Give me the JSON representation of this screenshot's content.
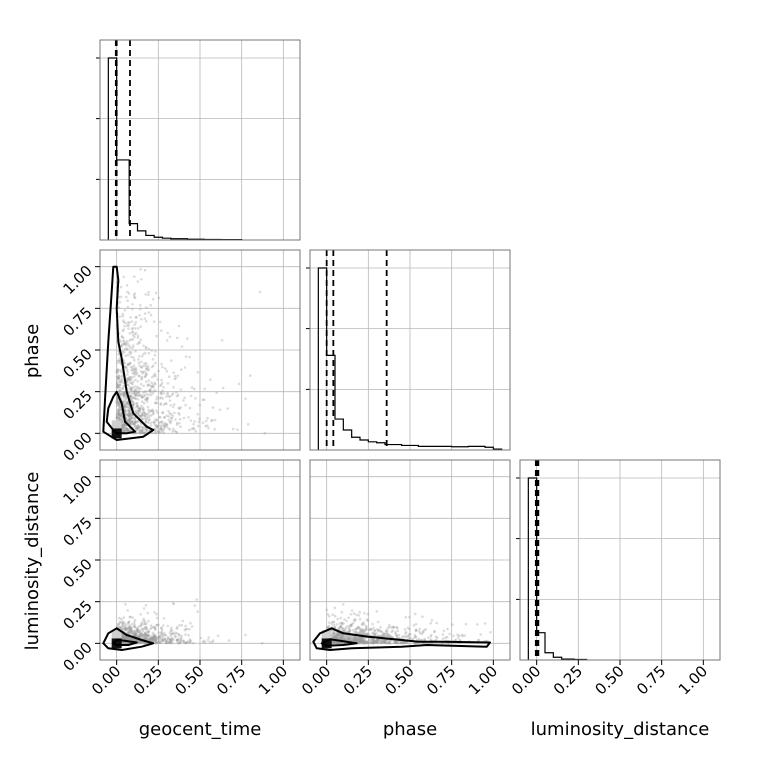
{
  "chart_data": {
    "type": "corner",
    "parameters": [
      "geocent_time",
      "phase",
      "luminosity_distance"
    ],
    "axis_range": [
      -0.1,
      1.1
    ],
    "ticks": [
      0.0,
      0.25,
      0.5,
      0.75,
      1.0
    ],
    "tick_labels": [
      "0.00",
      "0.25",
      "0.50",
      "0.75",
      "1.00"
    ],
    "grid": true,
    "histograms": [
      {
        "parameter": "geocent_time",
        "bin_edges": [
          -0.05,
          0.0,
          0.075,
          0.125,
          0.175,
          0.225,
          0.275,
          0.325,
          0.425,
          0.525,
          0.625,
          0.75
        ],
        "counts": [
          1.0,
          0.44,
          0.09,
          0.05,
          0.025,
          0.015,
          0.01,
          0.007,
          0.004,
          0.003,
          0.002
        ],
        "quantiles": [
          -0.005,
          0.0,
          0.08
        ]
      },
      {
        "parameter": "phase",
        "bin_edges": [
          -0.05,
          0.0,
          0.05,
          0.1,
          0.15,
          0.2,
          0.25,
          0.3,
          0.35,
          0.45,
          0.55,
          0.65,
          0.75,
          0.85,
          0.95,
          1.0,
          1.05
        ],
        "counts": [
          1.0,
          0.52,
          0.17,
          0.11,
          0.07,
          0.055,
          0.045,
          0.04,
          0.03,
          0.025,
          0.02,
          0.02,
          0.018,
          0.02,
          0.015,
          0.005
        ],
        "quantiles": [
          0.0,
          0.04,
          0.36
        ]
      },
      {
        "parameter": "luminosity_distance",
        "bin_edges": [
          -0.05,
          0.0,
          0.05,
          0.1,
          0.15,
          0.225,
          0.3
        ],
        "counts": [
          1.0,
          0.15,
          0.04,
          0.015,
          0.005,
          0.003
        ],
        "quantiles": [
          -0.005,
          0.0,
          0.01
        ]
      }
    ],
    "pairs": [
      {
        "x": "geocent_time",
        "y": "phase",
        "peak": [
          0.0,
          0.0
        ],
        "contours": [
          [
            [
              -0.02,
              0.02
            ],
            [
              -0.06,
              0.07
            ],
            [
              -0.05,
              0.15
            ],
            [
              -0.02,
              0.22
            ],
            [
              0.0,
              0.25
            ],
            [
              0.03,
              0.18
            ],
            [
              0.05,
              0.07
            ],
            [
              0.09,
              0.03
            ],
            [
              0.11,
              0.01
            ],
            [
              0.06,
              0.0
            ],
            [
              0.0,
              0.0
            ]
          ],
          [
            [
              -0.08,
              0.01
            ],
            [
              -0.07,
              0.2
            ],
            [
              -0.05,
              0.55
            ],
            [
              -0.03,
              0.85
            ],
            [
              -0.02,
              1.0
            ],
            [
              0.0,
              1.0
            ],
            [
              0.01,
              0.92
            ],
            [
              0.0,
              0.75
            ],
            [
              0.01,
              0.55
            ],
            [
              0.03,
              0.45
            ],
            [
              0.06,
              0.25
            ],
            [
              0.1,
              0.12
            ],
            [
              0.18,
              0.04
            ],
            [
              0.22,
              0.02
            ],
            [
              0.16,
              -0.02
            ],
            [
              0.0,
              -0.04
            ]
          ]
        ],
        "scatter_count": 1200
      },
      {
        "x": "geocent_time",
        "y": "luminosity_distance",
        "peak": [
          0.0,
          0.0
        ],
        "contours": [
          [
            [
              -0.02,
              0.0
            ],
            [
              0.0,
              0.02
            ],
            [
              0.05,
              0.015
            ],
            [
              0.12,
              0.005
            ],
            [
              0.07,
              -0.01
            ],
            [
              0.0,
              -0.01
            ]
          ],
          [
            [
              -0.08,
              0.0
            ],
            [
              -0.05,
              0.06
            ],
            [
              0.0,
              0.09
            ],
            [
              0.06,
              0.05
            ],
            [
              0.15,
              0.02
            ],
            [
              0.22,
              0.0
            ],
            [
              0.15,
              -0.02
            ],
            [
              0.03,
              -0.04
            ],
            [
              -0.05,
              -0.03
            ]
          ]
        ],
        "scatter_count": 1000
      },
      {
        "x": "phase",
        "y": "luminosity_distance",
        "peak": [
          0.0,
          0.0
        ],
        "contours": [
          [
            [
              -0.03,
              0.0
            ],
            [
              0.02,
              0.025
            ],
            [
              0.12,
              0.01
            ],
            [
              0.18,
              0.0
            ],
            [
              0.1,
              -0.01
            ],
            [
              0.0,
              -0.015
            ]
          ],
          [
            [
              -0.08,
              0.01
            ],
            [
              -0.04,
              0.06
            ],
            [
              0.03,
              0.09
            ],
            [
              0.1,
              0.06
            ],
            [
              0.25,
              0.04
            ],
            [
              0.45,
              0.02
            ],
            [
              0.55,
              0.01
            ],
            [
              0.7,
              0.01
            ],
            [
              0.98,
              0.005
            ],
            [
              0.96,
              -0.02
            ],
            [
              0.6,
              -0.01
            ],
            [
              0.45,
              -0.02
            ],
            [
              0.3,
              -0.025
            ],
            [
              0.15,
              -0.03
            ],
            [
              0.02,
              -0.04
            ],
            [
              -0.06,
              -0.03
            ]
          ]
        ],
        "scatter_count": 1000
      }
    ],
    "scatter_distributions": {
      "geocent_time": {
        "scale": 0.13,
        "max": 0.95
      },
      "phase": {
        "scale": 0.25,
        "max": 1.0
      },
      "luminosity_distance": {
        "scale": 0.04,
        "max": 0.9
      }
    }
  }
}
